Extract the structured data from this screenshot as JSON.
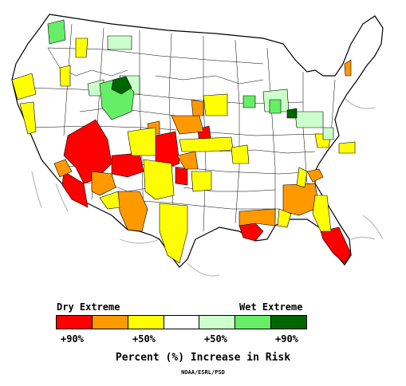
{
  "map": {
    "description_free": true,
    "colors": {
      "dry90": "#ff0000",
      "dry70": "#ff9900",
      "dry50": "#ffff00",
      "neutral": "#ffffff",
      "wet50": "#ccffcc",
      "wet70": "#66ee66",
      "wet90": "#006600",
      "border": "#000000",
      "coast": "#bbbbbb"
    }
  },
  "legend": {
    "dry_label": "Dry Extreme",
    "wet_label": "Wet Extreme",
    "ticks": [
      "+90%",
      "+50%",
      "+50%",
      "+90%"
    ],
    "swatches": [
      {
        "name": "dry-90",
        "color": "#ff0000"
      },
      {
        "name": "dry-70",
        "color": "#ff9900"
      },
      {
        "name": "dry-50",
        "color": "#ffff00"
      },
      {
        "name": "neutral",
        "color": "#ffffff"
      },
      {
        "name": "wet-50",
        "color": "#ccffcc"
      },
      {
        "name": "wet-70",
        "color": "#66ee66"
      },
      {
        "name": "wet-90",
        "color": "#006600"
      }
    ]
  },
  "title": "Percent (%) Increase in Risk",
  "credit": "NOAA/ESRL/PSD"
}
